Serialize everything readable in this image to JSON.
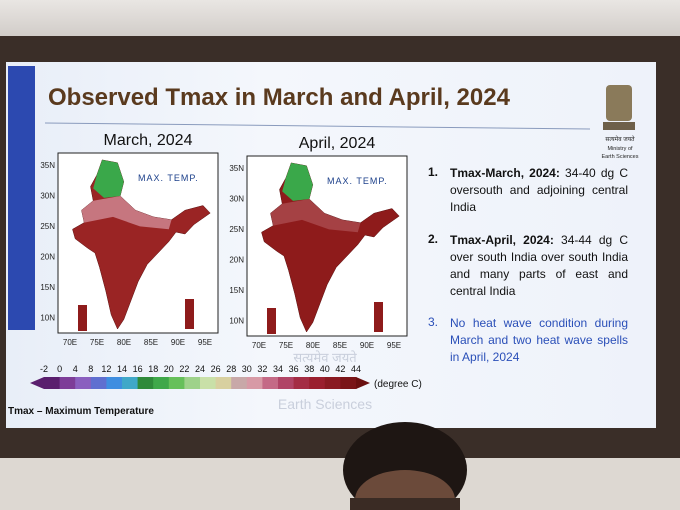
{
  "slide": {
    "title": "Observed Tmax in March and April, 2024",
    "logo": {
      "motto": "सत्यमेव जयते",
      "ministry_line1": "Ministry of",
      "ministry_line2": "Earth Sciences"
    },
    "maps": [
      {
        "title": "March, 2024",
        "legend": "MAX. TEMP."
      },
      {
        "title": "April, 2024",
        "legend": "MAX. TEMP."
      }
    ],
    "map_axes": {
      "lat_labels": [
        "35N",
        "30N",
        "25N",
        "20N",
        "15N",
        "10N"
      ],
      "lon_labels": [
        "70E",
        "75E",
        "80E",
        "85E",
        "90E",
        "95E"
      ]
    },
    "colorbar": {
      "labels": [
        -2,
        0,
        4,
        8,
        12,
        14,
        16,
        18,
        20,
        22,
        24,
        26,
        28,
        30,
        32,
        34,
        36,
        38,
        40,
        42,
        44
      ],
      "unit": "(degree C)"
    },
    "bullets": [
      {
        "number": "1.",
        "bold": "Tmax-March, 2024:",
        "text": "34-40 dg C oversouth and adjoining central India"
      },
      {
        "number": "2.",
        "bold": "Tmax-April, 2024:",
        "text": "34-44 dg C over south India  over south India and many parts of east and central India"
      },
      {
        "number": "3.",
        "text": "No heat wave condition during March and two heat wave spells in April, 2024"
      }
    ],
    "footer_note": "Tmax – Maximum Temperature",
    "watermark_motto": "सत्यमेव जयते",
    "watermark": "Earth Sciences"
  }
}
